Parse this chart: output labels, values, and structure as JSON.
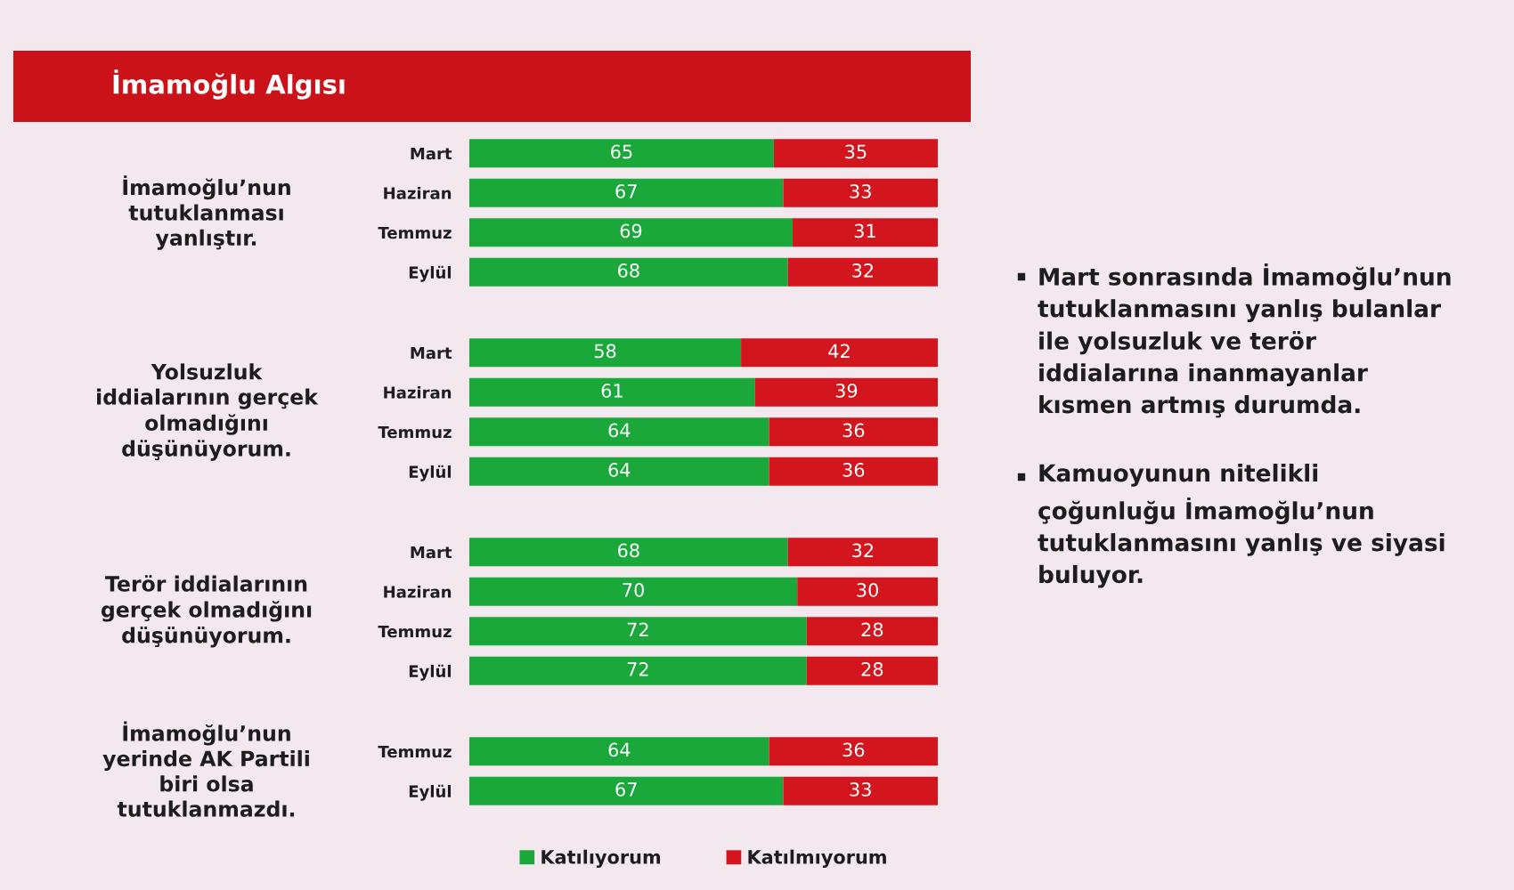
{
  "chart_data": [
    {
      "type": "bar",
      "orientation": "horizontal",
      "stacked": true,
      "title": "İmamoğlu Algısı",
      "ylabel": "İmamoğlu’nun tutuklanması yanlıştır.",
      "categories": [
        "Mart",
        "Haziran",
        "Temmuz",
        "Eylül"
      ],
      "series": [
        {
          "color": "#1ba83a",
          "values": [
            65,
            67,
            69,
            68
          ]
        },
        {
          "color": "#d3161d",
          "values": [
            35,
            33,
            31,
            32
          ]
        }
      ],
      "xlim": [
        0,
        100
      ],
      "data_labels": true,
      "tick_labels": "y",
      "annotations": [
        "Mart sonrasında İmamoğlu’nun tutuklanmasını yanlış bulanlar ile yolsuzluk ve terör iddialarına inanmayanlar kısmen artmış durumda.",
        "Kamuoyunun nitelikli çoğunluğu İmamoğlu’nun tutuklanmasını yanlış ve siyasi buluyor."
      ]
    },
    {
      "type": "bar",
      "orientation": "horizontal",
      "stacked": true,
      "ylabel": "Yolsuzluk iddialarının gerçek olmadığını düşünüyorum.",
      "categories": [
        "Mart",
        "Haziran",
        "Temmuz",
        "Eylül"
      ],
      "series": [
        {
          "color": "#1ba83a",
          "values": [
            58,
            61,
            64,
            64
          ]
        },
        {
          "color": "#d3161d",
          "values": [
            42,
            39,
            36,
            36
          ]
        }
      ],
      "xlim": [
        0,
        100
      ],
      "data_labels": true,
      "tick_labels": "y"
    },
    {
      "type": "bar",
      "orientation": "horizontal",
      "stacked": true,
      "ylabel": "Terör iddialarının gerçek olmadığını düşünüyorum.",
      "categories": [
        "Mart",
        "Haziran",
        "Temmuz",
        "Eylül"
      ],
      "series": [
        {
          "color": "#1ba83a",
          "values": [
            68,
            70,
            72,
            72
          ]
        },
        {
          "color": "#d3161d",
          "values": [
            32,
            30,
            28,
            28
          ]
        }
      ],
      "xlim": [
        0,
        100
      ],
      "data_labels": true,
      "tick_labels": "y"
    },
    {
      "type": "bar",
      "orientation": "horizontal",
      "stacked": true,
      "ylabel": "İmamoğlu’nun yerinde AK Partili biri olsa tutuklanmazdı.",
      "categories": [
        "Temmuz",
        "Eylül"
      ],
      "series": [
        {
          "name": "Katılıyorum",
          "color": "#1ba83a",
          "values": [
            64,
            67
          ]
        },
        {
          "name": "Katılmıyorum",
          "color": "#d3161d",
          "values": [
            36,
            33
          ]
        }
      ],
      "xlim": [
        0,
        100
      ],
      "data_labels": true,
      "tick_labels": "y",
      "legend": "bottom"
    }
  ]
}
